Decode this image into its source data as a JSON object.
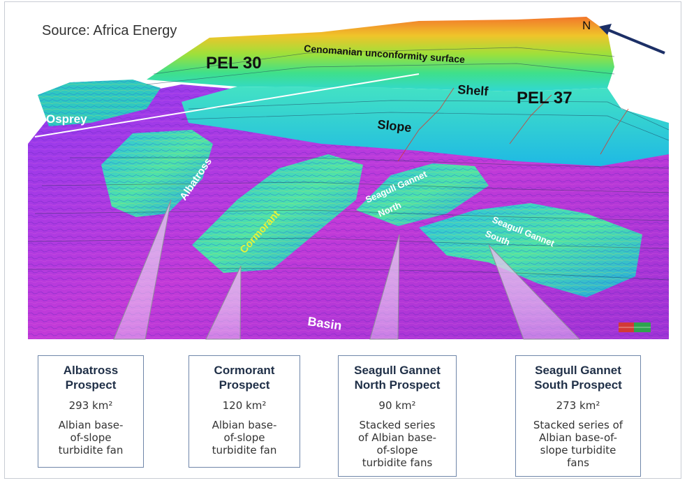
{
  "source": "Source: Africa Energy",
  "map_labels": {
    "north": "N",
    "pel30": "PEL 30",
    "pel37": "PEL 37",
    "surface": "Cenomanian unconformity surface",
    "shelf": "Shelf",
    "slope": "Slope",
    "osprey": "Osprey",
    "albatross": "Albatross",
    "cormorant": "Cormorant",
    "sgn_1": "Seagull Gannet",
    "sgn_2": "North",
    "sgs_1": "Seagull Gannet",
    "sgs_2": "South",
    "basin": "Basin"
  },
  "prospects": [
    {
      "title_1": "Albatross",
      "title_2": "Prospect",
      "area": "293 km²",
      "desc": [
        "Albian base-",
        "of-slope",
        "turbidite fan"
      ]
    },
    {
      "title_1": "Cormorant",
      "title_2": "Prospect",
      "area": "120 km²",
      "desc": [
        "Albian base-",
        "of-slope",
        "turbidite fan"
      ]
    },
    {
      "title_1": "Seagull Gannet",
      "title_2": "North Prospect",
      "area": "90 km²",
      "desc": [
        "Stacked series",
        "of Albian base-",
        "of-slope",
        "turbidite fans"
      ]
    },
    {
      "title_1": "Seagull Gannet",
      "title_2": "South Prospect",
      "area": "273 km²",
      "desc": [
        "Stacked series of",
        "Albian base-of-",
        "slope turbidite",
        "fans"
      ]
    }
  ],
  "colors": {
    "basin": "#b43ee0",
    "slope": "#2fd3d8",
    "shelf": "#7ee04a",
    "high": "#f3a21e",
    "card_border": "#6f86a9",
    "arrow": "#1c2f66"
  }
}
